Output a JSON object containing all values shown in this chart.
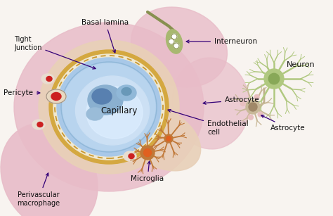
{
  "labels": {
    "tight_junction": "Tight\nJunction",
    "basal_lamina": "Basal lamina",
    "interneuron": "Interneuron",
    "capillary": "Capillary",
    "pericyte": "Pericyte",
    "astrocyte_main": "Astrocyte",
    "endothelial_cell": "Endothelial\ncell",
    "perivascular_macrophage": "Perivascular\nmacrophage",
    "microglia": "Microglia",
    "neuron": "Neuron",
    "astrocyte_right": "Astrocyte"
  },
  "colors": {
    "background": "#f8f4f0",
    "tissue_pink": "#e8bcc8",
    "tissue_pink2": "#dda8b8",
    "tissue_tan": "#e8d0b8",
    "tissue_tan2": "#ddc8a8",
    "basal_gold": "#d4a840",
    "basal_gold2": "#c89830",
    "endo_blue": "#a8c8e8",
    "cap_blue": "#b8d4ee",
    "cap_light": "#cce0f4",
    "cap_inner": "#ddeeff",
    "cell_blue": "#6888b0",
    "cell_blue2": "#4868a0",
    "interneuron_green": "#a8b870",
    "interneuron_dark": "#889050",
    "microglia_brown": "#c87840",
    "microglia_orange": "#d06030",
    "neuron_green": "#b8c888",
    "neuron_dark": "#98a868",
    "astrocyte_tan": "#c8b898",
    "astrocyte_dark": "#a89878",
    "arrow_color": "#330077",
    "text_color": "#111111",
    "outline": "#888888",
    "red_cell": "#cc2020",
    "white_cell": "#e8e0d0"
  },
  "layout": {
    "fig_width": 4.74,
    "fig_height": 3.07,
    "dpi": 100
  }
}
